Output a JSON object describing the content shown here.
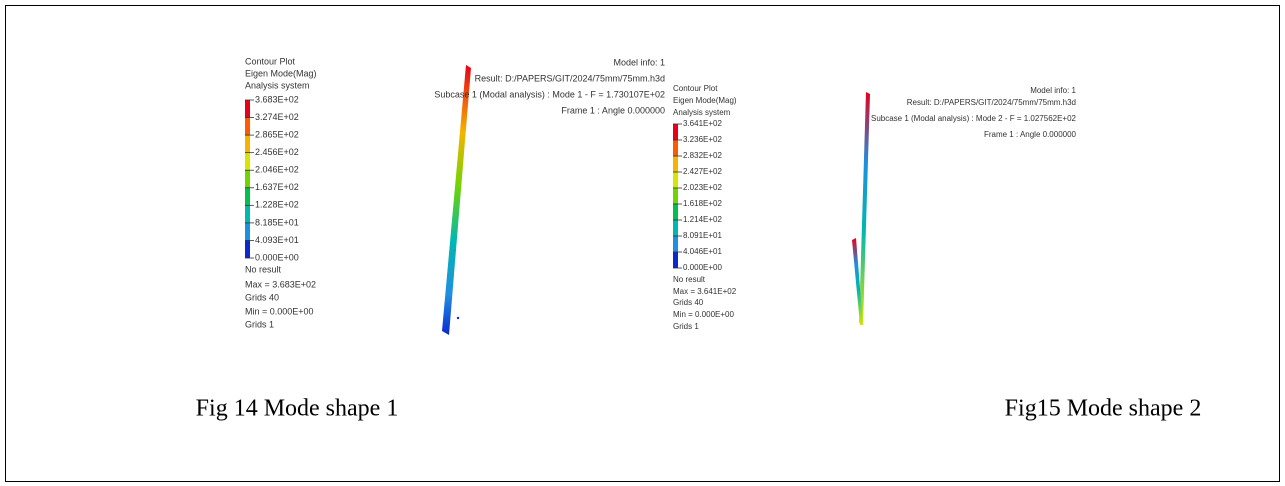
{
  "figures": [
    {
      "legend": {
        "title": [
          "Contour Plot",
          "Eigen Mode(Mag)",
          "Analysis system"
        ],
        "scale": [
          "3.683E+02",
          "3.274E+02",
          "2.865E+02",
          "2.456E+02",
          "2.046E+02",
          "1.637E+02",
          "1.228E+02",
          "8.185E+01",
          "4.093E+01",
          "0.000E+00"
        ],
        "footer": [
          "No result",
          "Max = 3.683E+02",
          "Grids 40",
          "Min = 0.000E+00",
          "Grids 1"
        ]
      },
      "model_info": [
        "Model info: 1",
        "Result: D:/PAPERS/GIT/2024/75mm/75mm.h3d",
        "Subcase 1 (Modal analysis) : Mode 1 - F = 1.730107E+02",
        "Frame 1 : Angle 0.000000"
      ],
      "caption": "Fig 14 Mode shape 1"
    },
    {
      "legend": {
        "title": [
          "Contour Plot",
          "Eigen Mode(Mag)",
          "Analysis system"
        ],
        "scale": [
          "3.641E+02",
          "3.236E+02",
          "2.832E+02",
          "2.427E+02",
          "2.023E+02",
          "1.618E+02",
          "1.214E+02",
          "8.091E+01",
          "4.046E+01",
          "0.000E+00"
        ],
        "footer": [
          "No result",
          "Max = 3.641E+02",
          "Grids 40",
          "Min = 0.000E+00",
          "Grids 1"
        ]
      },
      "model_info": [
        "Model info: 1",
        "Result: D:/PAPERS/GIT/2024/75mm/75mm.h3d",
        "Subcase 1 (Modal analysis) : Mode 2 - F = 1.027562E+02",
        "Frame 1 : Angle 0.000000"
      ],
      "caption": "Fig15 Mode shape 2"
    }
  ]
}
